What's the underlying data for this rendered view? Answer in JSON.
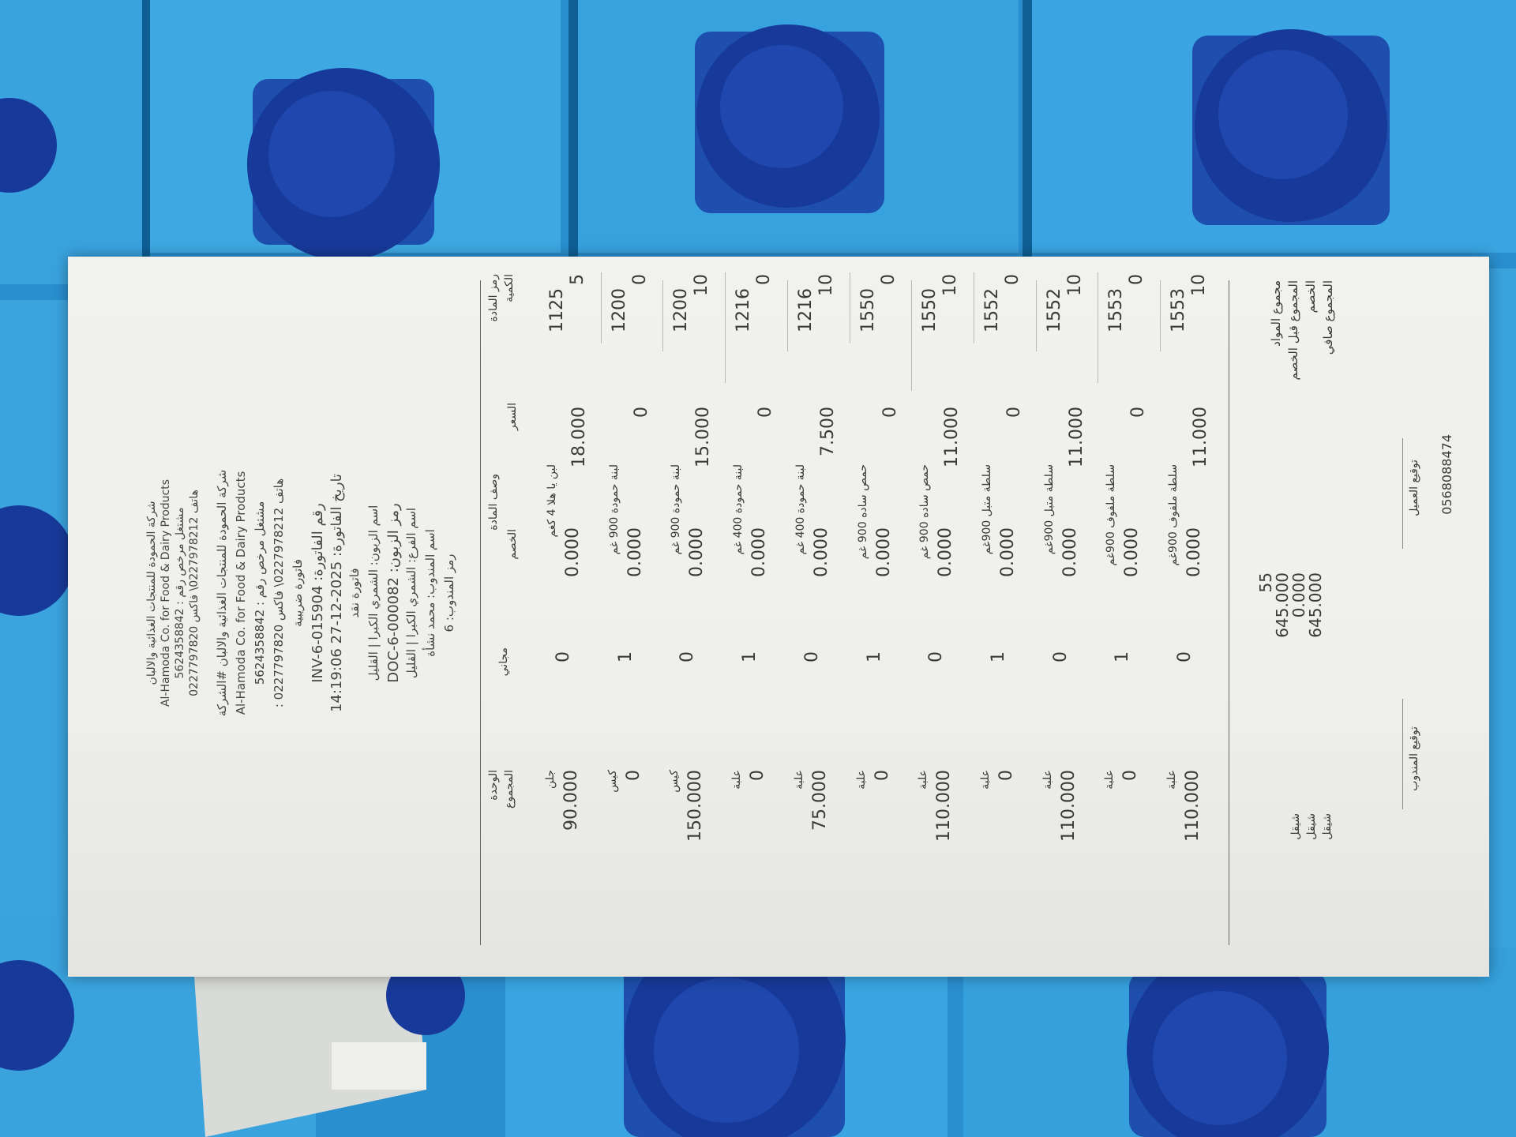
{
  "header": {
    "company": [
      "شركة الحمودة للمنتجات الغذائية والالبان",
      "Al-Hamoda Co. for Food & Dairy Products",
      "مشتغل مرخص رقم : 5624358842",
      "هاتف 0227978212\\ فاكس 0227797820"
    ],
    "invoice": [
      "شركة الحمودة للمنتجات الغذائية والالبان #الشركة",
      "Al-Hamoda Co. for Food & Dairy Products",
      "مشتغل مرخص رقم : 5624358842",
      "هاتف 0227978212\\ فاكس 0227797820 :",
      "فاتورة ضريبية",
      "رقم الفاتورة: INV-6-015904",
      "تاريخ الفاتورة: 2025-12-27 14:19:06",
      "فاتورة نقد",
      "اسم الزبون: الشمري الكبرا | القليل",
      "رمز الزبون: DOC-6-000082",
      "اسم الفرع: الشمري الكبرا | القليل",
      "اسم المندوب: محمد نشأة",
      "رمز المندوب: 6"
    ]
  },
  "table": {
    "headers": [
      "رمز المادة",
      "الكمية",
      "السعر",
      "وصف المادة",
      "الخصم",
      "مجاني",
      "الوحدة",
      "المجموع"
    ],
    "rows": [
      [
        "1125",
        "5",
        "18.000",
        "لبن يا هلا 4 كغم",
        "0.000",
        "0",
        "جلن",
        "90.000"
      ],
      [
        "1200",
        "0",
        "0",
        "لبنة حمودة 900 غم",
        "0.000",
        "1",
        "كيس",
        "0"
      ],
      [
        "1200",
        "10",
        "15.000",
        "لبنة حمودة 900 غم",
        "0.000",
        "0",
        "كيس",
        "150.000"
      ],
      [
        "1216",
        "0",
        "0",
        "لبنة حمودة 400 غم",
        "0.000",
        "1",
        "علبة",
        "0"
      ],
      [
        "1216",
        "10",
        "7.500",
        "لبنة حمودة 400 غم",
        "0.000",
        "0",
        "علبة",
        "75.000"
      ],
      [
        "1550",
        "0",
        "0",
        "حمص ساده 900 غم",
        "0.000",
        "1",
        "علبة",
        "0"
      ],
      [
        "1550",
        "10",
        "11.000",
        "حمص ساده 900 غم",
        "0.000",
        "0",
        "علبة",
        "110.000"
      ],
      [
        "1552",
        "0",
        "0",
        "سلطة متبل 900غم",
        "0.000",
        "1",
        "علبة",
        "0"
      ],
      [
        "1552",
        "10",
        "11.000",
        "سلطة متبل 900غم",
        "0.000",
        "0",
        "علبة",
        "110.000"
      ],
      [
        "1553",
        "0",
        "0",
        "سلطة ملفوف 900غم",
        "0.000",
        "1",
        "علبة",
        "0"
      ],
      [
        "1553",
        "10",
        "11.000",
        "سلطة ملفوف 900غم",
        "0.000",
        "0",
        "علبة",
        "110.000"
      ]
    ]
  },
  "totals": {
    "labels": [
      "مجموع المواد",
      "المجموع قبل الخصم",
      "الخصم",
      "المجموع صافي"
    ],
    "values": [
      "55",
      "645.000",
      "0.000",
      "645.000"
    ],
    "units": [
      "شيقل",
      "شيقل",
      "شيقل"
    ]
  },
  "footer": {
    "signatures": [
      "توقيع العميل",
      "توقيع المندوب"
    ],
    "phone": "0568088474"
  }
}
